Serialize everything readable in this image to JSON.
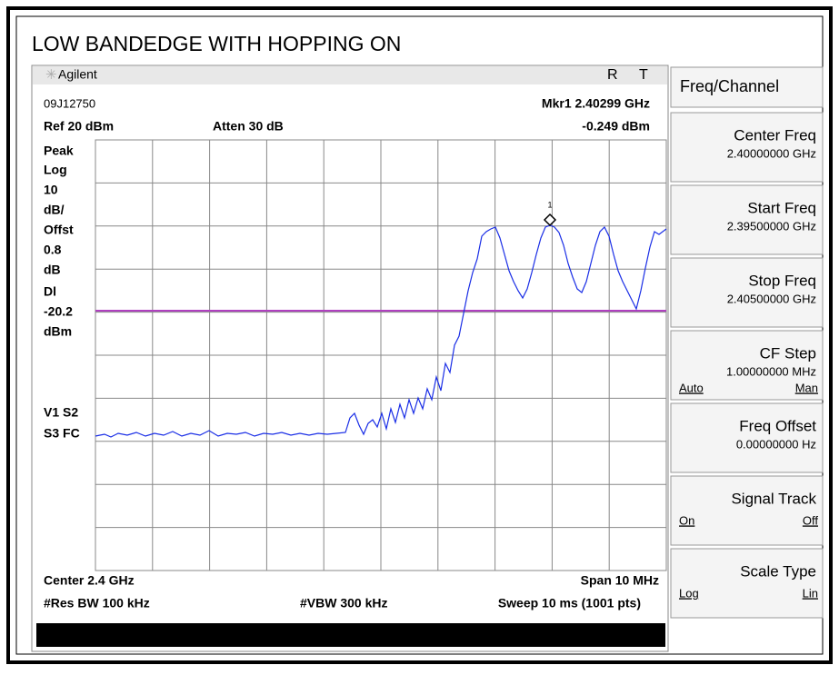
{
  "title": "LOW BANDEDGE WITH HOPPING ON",
  "header": {
    "brand": "Agilent",
    "status_r": "R",
    "status_t": "T"
  },
  "info": {
    "serial": "09J12750",
    "marker": "Mkr1  2.40299 GHz",
    "ref": "Ref 20 dBm",
    "atten": "Atten 30 dB",
    "marker_level": "-0.249 dBm"
  },
  "left_labels": [
    "Peak",
    "Log",
    "10",
    "dB/",
    "Offst",
    "0.8",
    "dB",
    "Dl",
    "-20.2",
    "dBm",
    "V1  S2",
    "S3  FC"
  ],
  "marker_label": "1",
  "footer": {
    "center": "Center 2.4 GHz",
    "span": "Span 10 MHz",
    "rbw": "#Res BW 100 kHz",
    "vbw": "#VBW 300 kHz",
    "sweep": "Sweep 10 ms (1001 pts)"
  },
  "menu": {
    "title": "Freq/Channel",
    "keys": [
      {
        "label": "Center Freq",
        "value": "2.40000000 GHz"
      },
      {
        "label": "Start Freq",
        "value": "2.39500000 GHz"
      },
      {
        "label": "Stop Freq",
        "value": "2.40500000 GHz"
      },
      {
        "label": "CF Step",
        "value": "1.00000000 MHz",
        "left": "Auto",
        "right": "Man"
      },
      {
        "label": "Freq Offset",
        "value": "0.00000000  Hz"
      },
      {
        "label": "Signal Track",
        "left": "On",
        "right": "Off"
      },
      {
        "label": "Scale Type",
        "left": "Log",
        "right": "Lin"
      }
    ]
  }
}
